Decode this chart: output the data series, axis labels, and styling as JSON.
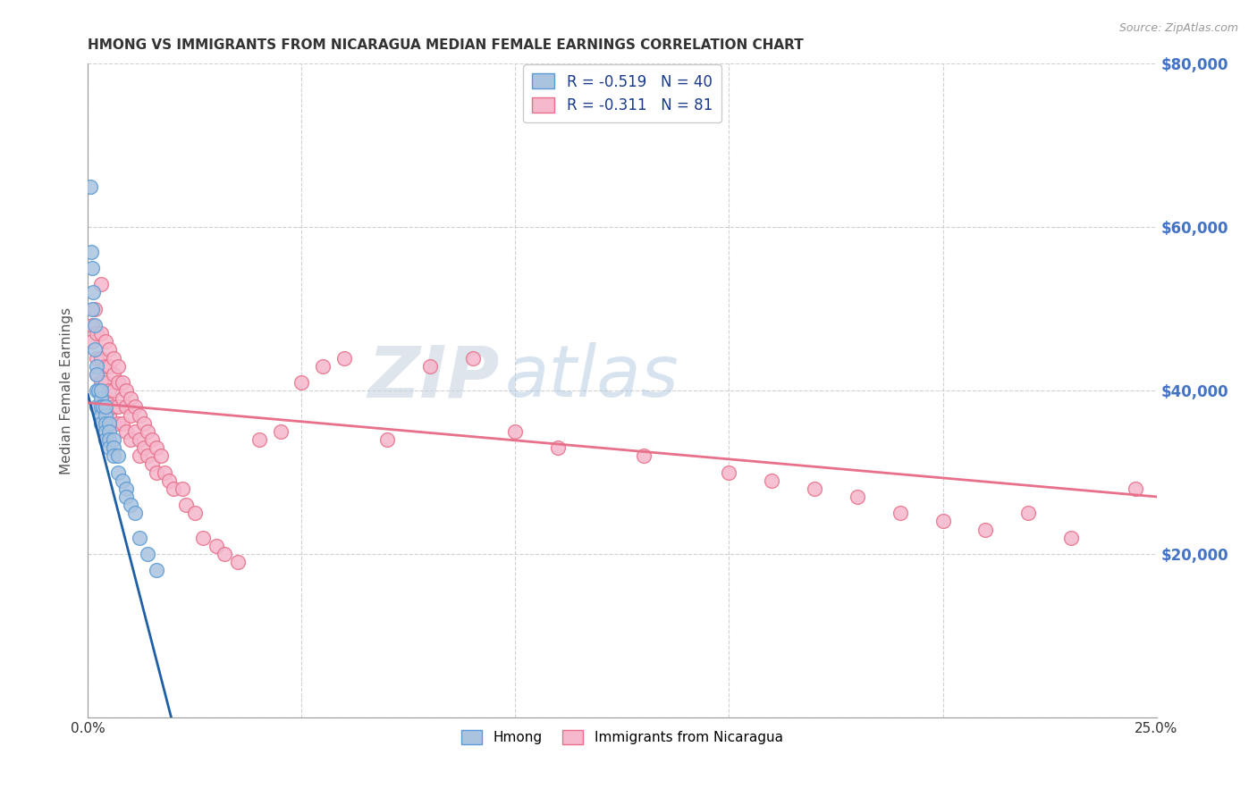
{
  "title": "HMONG VS IMMIGRANTS FROM NICARAGUA MEDIAN FEMALE EARNINGS CORRELATION CHART",
  "source": "Source: ZipAtlas.com",
  "ylabel": "Median Female Earnings",
  "x_min": 0.0,
  "x_max": 0.25,
  "y_min": 0,
  "y_max": 80000,
  "x_ticks": [
    0.0,
    0.05,
    0.1,
    0.15,
    0.2,
    0.25
  ],
  "y_ticks": [
    0,
    20000,
    40000,
    60000,
    80000
  ],
  "y_tick_labels_right": [
    "",
    "$20,000",
    "$40,000",
    "$60,000",
    "$80,000"
  ],
  "hmong_color": "#aac4e0",
  "hmong_edge_color": "#5b9bd5",
  "nicaragua_color": "#f5b8cc",
  "nicaragua_edge_color": "#e8708a",
  "hmong_line_color": "#1f5fa6",
  "nicaragua_line_color": "#e8708a",
  "hmong_R": -0.519,
  "hmong_N": 40,
  "nicaragua_R": -0.311,
  "nicaragua_N": 81,
  "background_color": "#ffffff",
  "grid_color": "#cccccc",
  "title_color": "#333333",
  "axis_label_color": "#555555",
  "right_tick_color": "#4472c4",
  "hmong_x": [
    0.0005,
    0.0008,
    0.001,
    0.001,
    0.0012,
    0.0015,
    0.0015,
    0.002,
    0.002,
    0.002,
    0.002,
    0.0025,
    0.003,
    0.003,
    0.003,
    0.003,
    0.003,
    0.0035,
    0.004,
    0.004,
    0.004,
    0.004,
    0.004,
    0.005,
    0.005,
    0.005,
    0.005,
    0.006,
    0.006,
    0.006,
    0.007,
    0.007,
    0.008,
    0.009,
    0.009,
    0.01,
    0.011,
    0.012,
    0.014,
    0.016
  ],
  "hmong_y": [
    65000,
    57000,
    55000,
    50000,
    52000,
    48000,
    45000,
    43000,
    42000,
    40000,
    38000,
    40000,
    39000,
    38000,
    37000,
    36000,
    40000,
    38000,
    37000,
    36000,
    35000,
    34000,
    38000,
    36000,
    35000,
    34000,
    33000,
    34000,
    33000,
    32000,
    32000,
    30000,
    29000,
    28000,
    27000,
    26000,
    25000,
    22000,
    20000,
    18000
  ],
  "nicaragua_x": [
    0.001,
    0.001,
    0.0015,
    0.002,
    0.002,
    0.002,
    0.003,
    0.003,
    0.003,
    0.003,
    0.004,
    0.004,
    0.004,
    0.004,
    0.004,
    0.005,
    0.005,
    0.005,
    0.005,
    0.006,
    0.006,
    0.006,
    0.006,
    0.007,
    0.007,
    0.007,
    0.007,
    0.008,
    0.008,
    0.008,
    0.009,
    0.009,
    0.009,
    0.01,
    0.01,
    0.01,
    0.011,
    0.011,
    0.012,
    0.012,
    0.012,
    0.013,
    0.013,
    0.014,
    0.014,
    0.015,
    0.015,
    0.016,
    0.016,
    0.017,
    0.018,
    0.019,
    0.02,
    0.022,
    0.023,
    0.025,
    0.027,
    0.03,
    0.032,
    0.035,
    0.04,
    0.045,
    0.05,
    0.055,
    0.06,
    0.07,
    0.08,
    0.09,
    0.1,
    0.11,
    0.13,
    0.15,
    0.16,
    0.17,
    0.18,
    0.19,
    0.2,
    0.21,
    0.22,
    0.23,
    0.245
  ],
  "nicaragua_y": [
    46000,
    48000,
    50000,
    47000,
    44000,
    42000,
    53000,
    47000,
    44000,
    41000,
    46000,
    43000,
    41000,
    39000,
    37000,
    45000,
    43000,
    40000,
    37000,
    44000,
    42000,
    40000,
    38000,
    43000,
    41000,
    38000,
    36000,
    41000,
    39000,
    36000,
    40000,
    38000,
    35000,
    39000,
    37000,
    34000,
    38000,
    35000,
    37000,
    34000,
    32000,
    36000,
    33000,
    35000,
    32000,
    34000,
    31000,
    33000,
    30000,
    32000,
    30000,
    29000,
    28000,
    28000,
    26000,
    25000,
    22000,
    21000,
    20000,
    19000,
    34000,
    35000,
    41000,
    43000,
    44000,
    34000,
    43000,
    44000,
    35000,
    33000,
    32000,
    30000,
    29000,
    28000,
    27000,
    25000,
    24000,
    23000,
    25000,
    22000,
    28000
  ],
  "hmong_trend_x": [
    0.0,
    0.017
  ],
  "hmong_trend_y": [
    39500,
    5000
  ],
  "nicaragua_trend_x": [
    0.0,
    0.25
  ],
  "nicaragua_trend_y": [
    38500,
    27000
  ]
}
